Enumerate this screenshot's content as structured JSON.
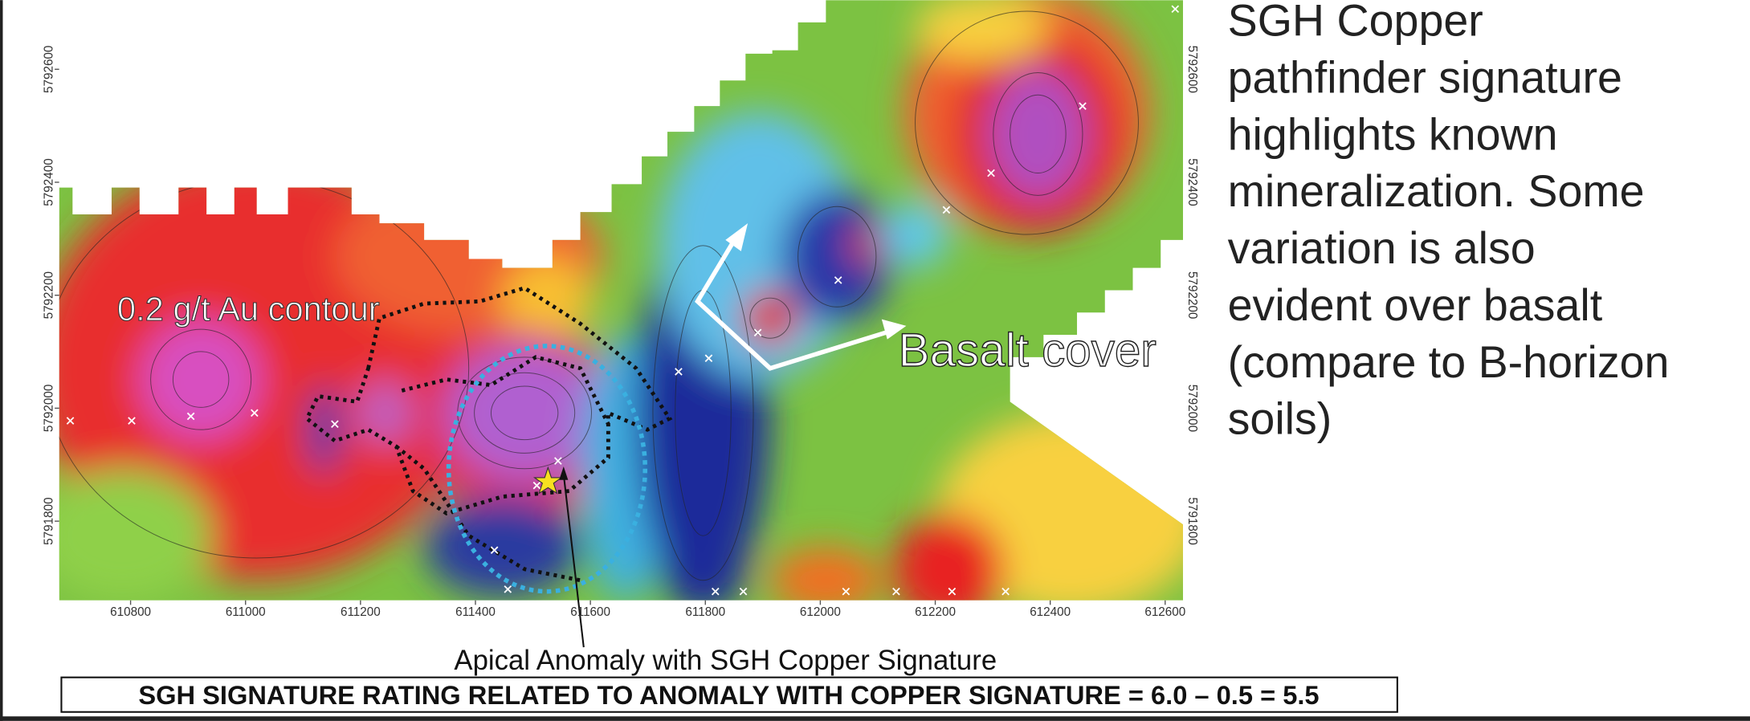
{
  "map": {
    "xticks": [
      610800,
      611000,
      611200,
      611400,
      611600,
      611800,
      612000,
      612200,
      612400,
      612600
    ],
    "yticks": [
      5791800,
      5792000,
      5792200,
      5792400,
      5792600
    ],
    "annotations": {
      "au_contour": "0.2 g/t Au contour",
      "basalt": "Basalt cover",
      "apical": "Apical Anomaly with SGH Copper Signature"
    }
  },
  "side_text": [
    "SGH Copper",
    "pathfinder signature",
    "highlights known",
    "mineralization. Some",
    "variation is also",
    "evident over basalt",
    "(compare to B-horizon",
    "soils)"
  ],
  "footer": "SGH SIGNATURE RATING RELATED TO ANOMALY WITH COPPER SIGNATURE = 6.0 – 0.5 = 5.5"
}
